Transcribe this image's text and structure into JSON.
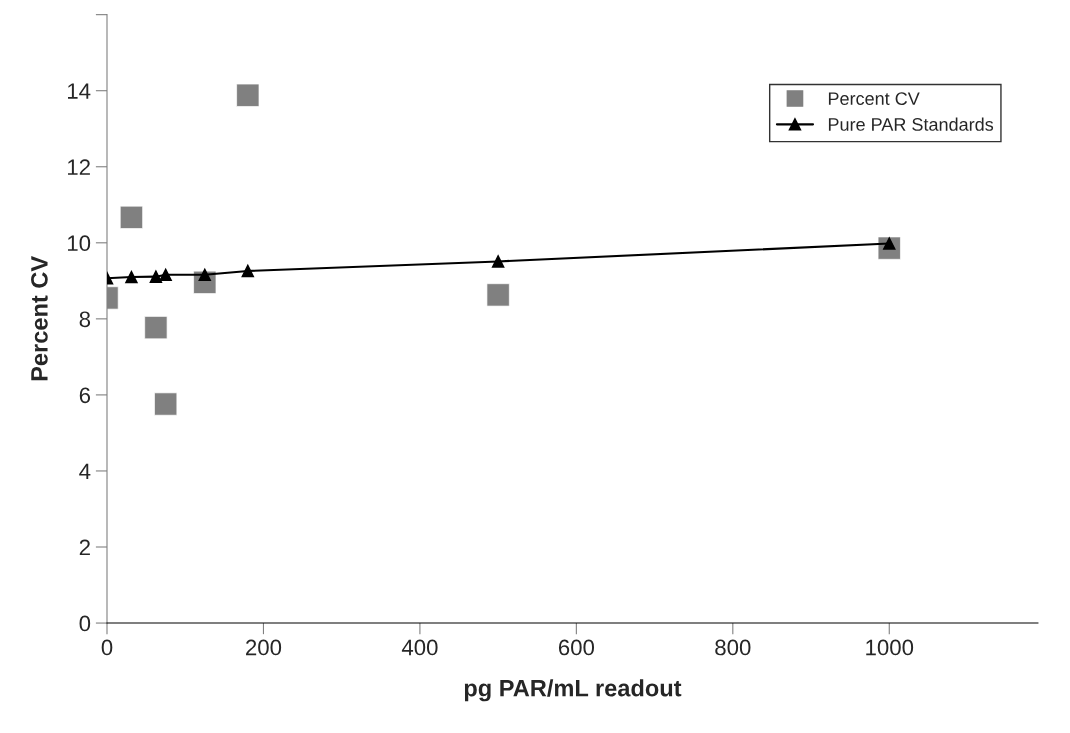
{
  "chart_data": {
    "type": "scatter",
    "xlabel": "pg PAR/mL readout",
    "ylabel": "Percent CV",
    "xlim": [
      0,
      1190
    ],
    "xticks": [
      0,
      200,
      400,
      600,
      800,
      1000
    ],
    "ylim": [
      0,
      16
    ],
    "yticks": [
      0,
      2,
      4,
      6,
      8,
      10,
      12,
      14,
      {
        "value": 16,
        "label": null
      }
    ],
    "grid": false,
    "legend": "top right",
    "series": [
      {
        "name": "Percent CV",
        "type": "scatter",
        "marker": "square",
        "color": "#808080",
        "x": [
          0,
          31.25,
          62.5,
          75,
          125,
          180,
          500,
          1000
        ],
        "values": [
          8.55,
          10.67,
          7.77,
          5.76,
          8.96,
          13.88,
          8.63,
          9.86
        ]
      },
      {
        "name": "Pure PAR Standards",
        "type": "line",
        "marker": "triangle",
        "color": "#000000",
        "line_style": "solid",
        "x": [
          0,
          31.25,
          62.5,
          75,
          125,
          180,
          500,
          1000
        ],
        "values": [
          9.07,
          9.1,
          9.11,
          9.16,
          9.16,
          9.26,
          9.51,
          9.98
        ]
      }
    ]
  }
}
